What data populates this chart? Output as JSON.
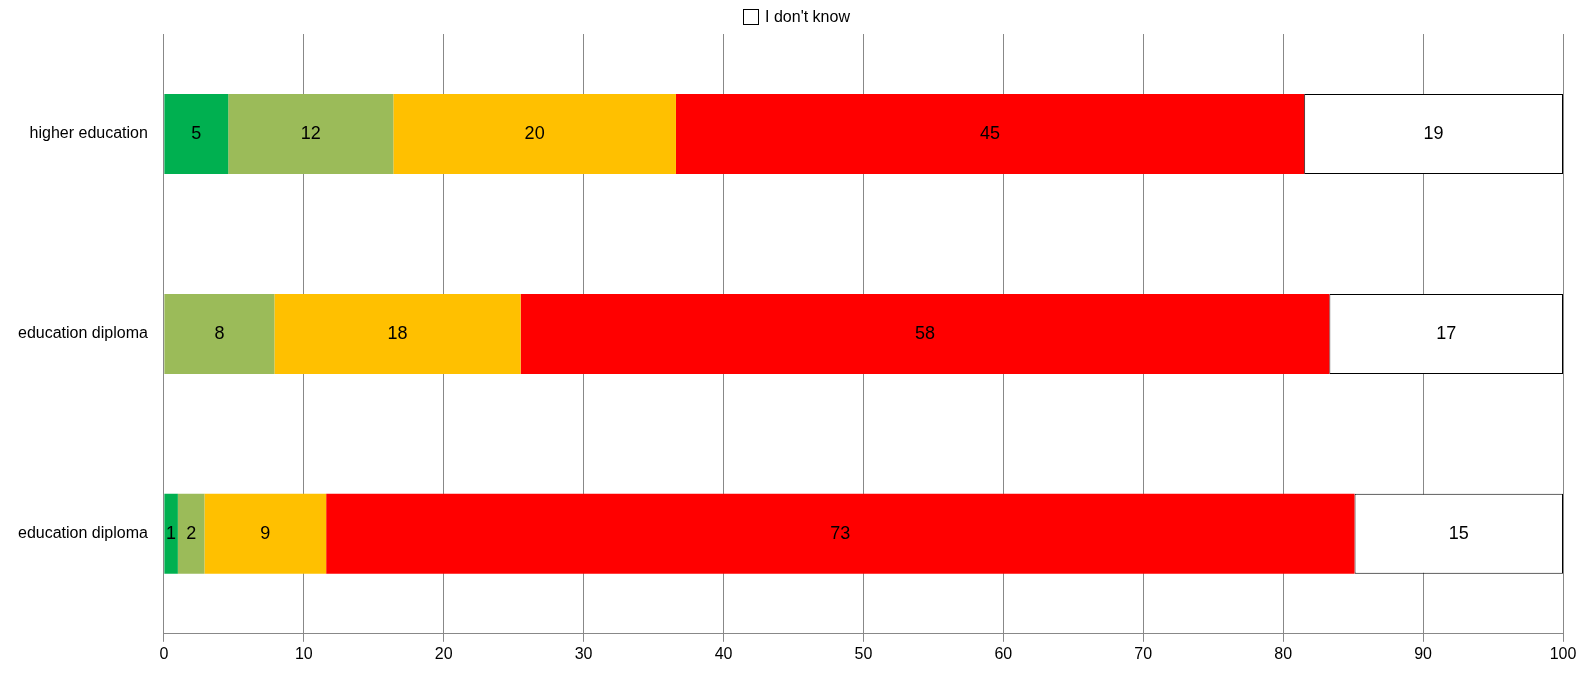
{
  "chart_data": {
    "type": "bar",
    "orientation": "horizontal",
    "stacked": true,
    "categories": [
      "higher education",
      "education diploma",
      "education diploma"
    ],
    "series": [
      {
        "color": "#00b050",
        "values": [
          4.6,
          null,
          1.0
        ],
        "value_labels": [
          "5",
          null,
          "1"
        ]
      },
      {
        "color": "#9bbb59",
        "values": [
          11.8,
          7.9,
          1.9
        ],
        "value_labels": [
          "12",
          "8",
          "2"
        ]
      },
      {
        "color": "#ffc000",
        "values": [
          20.2,
          17.6,
          8.7
        ],
        "value_labels": [
          "20",
          "18",
          "9"
        ]
      },
      {
        "color": "#ff0000",
        "values": [
          44.9,
          57.8,
          73.5
        ],
        "value_labels": [
          "45",
          "58",
          "73"
        ]
      },
      {
        "name": "I don't know",
        "color": "#ffffff",
        "values": [
          18.5,
          16.7,
          14.9
        ],
        "value_labels": [
          "19",
          "17",
          "15"
        ]
      }
    ],
    "xlim": [
      0,
      100
    ],
    "xticks": [
      0,
      10,
      20,
      30,
      40,
      50,
      60,
      70,
      80,
      90,
      100
    ],
    "grid": "x",
    "legend": "top"
  }
}
